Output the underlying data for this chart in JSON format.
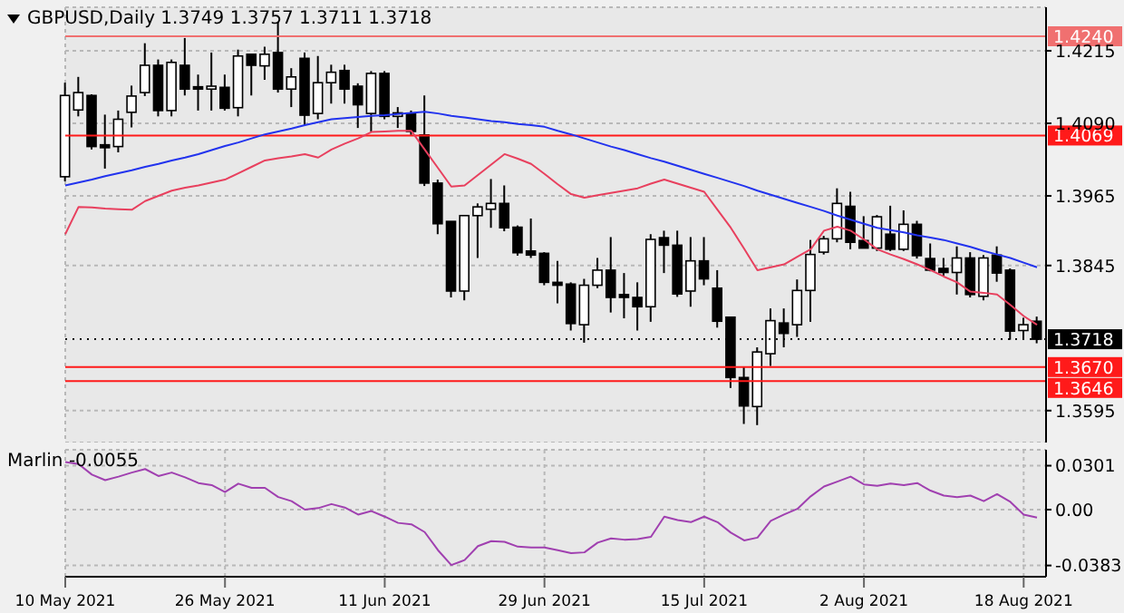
{
  "chart_data": [
    {
      "type": "candlestick",
      "title": "GBPUSD,Daily 1.3749 1.3757 1.3711 1.3718",
      "ohlc": [
        [
          1.3998,
          1.416,
          1.399,
          1.4138
        ],
        [
          1.4113,
          1.417,
          1.4102,
          1.4143
        ],
        [
          1.4138,
          1.414,
          1.4045,
          1.405
        ],
        [
          1.4053,
          1.4105,
          1.4012,
          1.4048
        ],
        [
          1.405,
          1.4112,
          1.404,
          1.4097
        ],
        [
          1.4109,
          1.4155,
          1.4083,
          1.4137
        ],
        [
          1.4143,
          1.4228,
          1.4137,
          1.419
        ],
        [
          1.419,
          1.42,
          1.4102,
          1.4112
        ],
        [
          1.4112,
          1.42,
          1.4102,
          1.4195
        ],
        [
          1.419,
          1.4237,
          1.4138,
          1.4149
        ],
        [
          1.4153,
          1.4174,
          1.4112,
          1.4149
        ],
        [
          1.4149,
          1.4212,
          1.4112,
          1.4154
        ],
        [
          1.4152,
          1.4174,
          1.4112,
          1.4116
        ],
        [
          1.4117,
          1.4217,
          1.4102,
          1.4206
        ],
        [
          1.4209,
          1.4209,
          1.4138,
          1.419
        ],
        [
          1.4189,
          1.4222,
          1.4165,
          1.4209
        ],
        [
          1.4212,
          1.4264,
          1.4143,
          1.4149
        ],
        [
          1.4149,
          1.4185,
          1.4118,
          1.417
        ],
        [
          1.4202,
          1.4212,
          1.4087,
          1.4104
        ],
        [
          1.4107,
          1.4206,
          1.4097,
          1.416
        ],
        [
          1.416,
          1.4191,
          1.4124,
          1.4178
        ],
        [
          1.4181,
          1.4191,
          1.4124,
          1.4149
        ],
        [
          1.4154,
          1.4159,
          1.4082,
          1.4122
        ],
        [
          1.4107,
          1.418,
          1.4076,
          1.4176
        ],
        [
          1.4176,
          1.418,
          1.4097,
          1.4102
        ],
        [
          1.4102,
          1.4118,
          1.4082,
          1.4108
        ],
        [
          1.4107,
          1.4112,
          1.407,
          1.4076
        ],
        [
          1.407,
          1.4138,
          1.3982,
          1.3987
        ],
        [
          1.3987,
          1.3993,
          1.3899,
          1.3917
        ],
        [
          1.3921,
          1.3921,
          1.379,
          1.3801
        ],
        [
          1.3801,
          1.3931,
          1.3785,
          1.3931
        ],
        [
          1.3931,
          1.3952,
          1.3858,
          1.3946
        ],
        [
          1.3942,
          1.3994,
          1.391,
          1.3952
        ],
        [
          1.3952,
          1.3983,
          1.3904,
          1.391
        ],
        [
          1.3911,
          1.3914,
          1.3862,
          1.3867
        ],
        [
          1.387,
          1.3926,
          1.3858,
          1.3863
        ],
        [
          1.3866,
          1.3868,
          1.3811,
          1.3816
        ],
        [
          1.3816,
          1.3853,
          1.378,
          1.3811
        ],
        [
          1.3813,
          1.3816,
          1.3733,
          1.3745
        ],
        [
          1.3743,
          1.3822,
          1.3712,
          1.3811
        ],
        [
          1.3811,
          1.3858,
          1.3806,
          1.3837
        ],
        [
          1.3837,
          1.3894,
          1.3764,
          1.379
        ],
        [
          1.3795,
          1.3832,
          1.3754,
          1.379
        ],
        [
          1.379,
          1.3816,
          1.3733,
          1.3774
        ],
        [
          1.3774,
          1.3899,
          1.3748,
          1.389
        ],
        [
          1.3893,
          1.3905,
          1.3832,
          1.388
        ],
        [
          1.388,
          1.3905,
          1.3791,
          1.3796
        ],
        [
          1.3801,
          1.3894,
          1.3774,
          1.3853
        ],
        [
          1.3853,
          1.3894,
          1.3811,
          1.3822
        ],
        [
          1.3806,
          1.3837,
          1.3738,
          1.3749
        ],
        [
          1.3756,
          1.3756,
          1.3634,
          1.3652
        ],
        [
          1.3652,
          1.3671,
          1.3572,
          1.3603
        ],
        [
          1.3602,
          1.3704,
          1.357,
          1.3696
        ],
        [
          1.3693,
          1.3771,
          1.3672,
          1.375
        ],
        [
          1.3746,
          1.3771,
          1.3704,
          1.3728
        ],
        [
          1.3743,
          1.3821,
          1.3722,
          1.3802
        ],
        [
          1.3802,
          1.3889,
          1.3748,
          1.3864
        ],
        [
          1.3868,
          1.3896,
          1.3864,
          1.3891
        ],
        [
          1.3891,
          1.3978,
          1.3885,
          1.3952
        ],
        [
          1.3947,
          1.3972,
          1.3873,
          1.3885
        ],
        [
          1.3888,
          1.393,
          1.3875,
          1.3875
        ],
        [
          1.3875,
          1.3932,
          1.387,
          1.3929
        ],
        [
          1.3899,
          1.3948,
          1.387,
          1.3873
        ],
        [
          1.3873,
          1.394,
          1.387,
          1.3916
        ],
        [
          1.3916,
          1.3922,
          1.3857,
          1.3862
        ],
        [
          1.3857,
          1.3883,
          1.3835,
          1.3837
        ],
        [
          1.384,
          1.3858,
          1.3827,
          1.3833
        ],
        [
          1.3833,
          1.3878,
          1.3795,
          1.3858
        ],
        [
          1.3858,
          1.3868,
          1.379,
          1.3795
        ],
        [
          1.3792,
          1.3863,
          1.3785,
          1.3858
        ],
        [
          1.3863,
          1.3878,
          1.3817,
          1.3832
        ],
        [
          1.3837,
          1.384,
          1.3717,
          1.3732
        ],
        [
          1.3733,
          1.3755,
          1.3717,
          1.3743
        ],
        [
          1.3749,
          1.3757,
          1.3711,
          1.3718
        ]
      ],
      "series": [
        {
          "type": "line",
          "color": "#e8405e",
          "values": [
            1.3899,
            1.3946,
            1.3945,
            1.3943,
            1.3942,
            1.3941,
            1.3956,
            1.3965,
            1.3974,
            1.3979,
            1.3983,
            1.3988,
            1.3993,
            1.4004,
            1.4015,
            1.4026,
            1.403,
            1.4033,
            1.4037,
            1.4031,
            1.4045,
            1.4055,
            1.4064,
            1.4075,
            1.4076,
            1.4077,
            1.4077,
            1.4045,
            1.4013,
            1.3981,
            1.3983,
            1.4001,
            1.4019,
            1.4037,
            1.4029,
            1.402,
            1.4003,
            1.3985,
            1.3968,
            1.3962,
            1.3966,
            1.397,
            1.3974,
            1.3978,
            1.3986,
            1.3993,
            1.3986,
            1.3979,
            1.3972,
            1.3941,
            1.391,
            1.3874,
            1.3837,
            1.3842,
            1.3847,
            1.386,
            1.3873,
            1.3905,
            1.3912,
            1.3905,
            1.389,
            1.3873,
            1.3864,
            1.3856,
            1.3847,
            1.3837,
            1.3826,
            1.3816,
            1.38,
            1.3798,
            1.3795,
            1.3777,
            1.3758,
            1.3743
          ]
        },
        {
          "type": "line",
          "color": "#2233ee",
          "values": [
            1.3983,
            1.3988,
            1.3993,
            1.3999,
            1.4004,
            1.4009,
            1.4015,
            1.402,
            1.4026,
            1.4031,
            1.4037,
            1.4044,
            1.4051,
            1.4057,
            1.4064,
            1.4071,
            1.4076,
            1.4081,
            1.4087,
            1.4092,
            1.4097,
            1.4099,
            1.4101,
            1.4103,
            1.4104,
            1.4106,
            1.4108,
            1.411,
            1.4107,
            1.4103,
            1.41,
            1.4097,
            1.4094,
            1.4092,
            1.4089,
            1.4087,
            1.4084,
            1.4077,
            1.4071,
            1.4064,
            1.4057,
            1.405,
            1.4044,
            1.4037,
            1.403,
            1.4024,
            1.4017,
            1.401,
            1.4003,
            1.3996,
            1.3989,
            1.3982,
            1.3974,
            1.3967,
            1.396,
            1.3953,
            1.3946,
            1.3939,
            1.3931,
            1.3924,
            1.3917,
            1.391,
            1.3906,
            1.3902,
            1.3897,
            1.3893,
            1.3889,
            1.3883,
            1.3877,
            1.387,
            1.3864,
            1.3858,
            1.385,
            1.3842
          ]
        }
      ],
      "ylim": [
        1.354,
        1.429
      ],
      "yticks": [
        1.4215,
        {
          "value": 1.409,
          "label": "1.4090"
        },
        1.3965,
        1.3845,
        1.3595
      ],
      "ref_lines": [
        {
          "axis": "y",
          "value": 1.424,
          "label": "1.4240",
          "color": "#f07070"
        },
        {
          "axis": "y",
          "value": 1.4069,
          "label": "1.4069",
          "color": "#ff1a1a"
        },
        {
          "axis": "y",
          "value": 1.3718,
          "label": "1.3718",
          "color": "#000000",
          "line_style": "dotted"
        },
        {
          "axis": "y",
          "value": 1.367,
          "label": "1.3670",
          "color": "#ff1a1a"
        },
        {
          "axis": "y",
          "value": 1.3646,
          "label": "1.3646",
          "color": "#ff1a1a"
        }
      ],
      "grid": true,
      "tick_labels": "y",
      "marker": "none"
    },
    {
      "type": "line",
      "title": "Marlin -0.0055",
      "categories": [
        "10 May 2021",
        null,
        null,
        null,
        null,
        null,
        null,
        null,
        null,
        null,
        null,
        null,
        "26 May 2021",
        null,
        null,
        null,
        null,
        null,
        null,
        null,
        null,
        null,
        null,
        null,
        "11 Jun 2021",
        null,
        null,
        null,
        null,
        null,
        null,
        null,
        null,
        null,
        null,
        null,
        "29 Jun 2021",
        null,
        null,
        null,
        null,
        null,
        null,
        null,
        null,
        null,
        null,
        null,
        "15 Jul 2021",
        null,
        null,
        null,
        null,
        null,
        null,
        null,
        null,
        null,
        null,
        null,
        "2 Aug 2021",
        null,
        null,
        null,
        null,
        null,
        null,
        null,
        null,
        null,
        null,
        null,
        "18 Aug 2021",
        null
      ],
      "series": [
        {
          "color": "#a040b0",
          "values": [
            0.0326,
            0.0312,
            0.024,
            0.0202,
            0.0226,
            0.0254,
            0.0278,
            0.023,
            0.0254,
            0.0221,
            0.0182,
            0.0168,
            0.012,
            0.0178,
            0.0149,
            0.0149,
            0.0086,
            0.0058,
            0.0,
            0.001,
            0.0038,
            0.0014,
            -0.0034,
            -0.001,
            -0.0048,
            -0.0091,
            -0.0101,
            -0.0154,
            -0.0278,
            -0.038,
            -0.0346,
            -0.025,
            -0.0216,
            -0.0221,
            -0.0254,
            -0.0259,
            -0.0259,
            -0.0278,
            -0.0298,
            -0.0293,
            -0.0226,
            -0.0197,
            -0.0206,
            -0.0202,
            -0.0187,
            -0.0048,
            -0.0072,
            -0.0086,
            -0.0048,
            -0.0086,
            -0.0158,
            -0.0211,
            -0.0192,
            -0.0077,
            -0.0034,
            0.0005,
            0.0091,
            0.0158,
            0.0192,
            0.0226,
            0.0173,
            0.0163,
            0.0178,
            0.0168,
            0.0182,
            0.013,
            0.0096,
            0.0086,
            0.0096,
            0.0058,
            0.0106,
            0.0053,
            -0.0034,
            -0.0055
          ]
        }
      ],
      "ylim": [
        -0.046,
        0.041
      ],
      "yticks": [
        0.0301,
        {
          "value": 0,
          "label": "0.00"
        },
        -0.0383
      ],
      "grid": true,
      "marker": "none"
    }
  ]
}
